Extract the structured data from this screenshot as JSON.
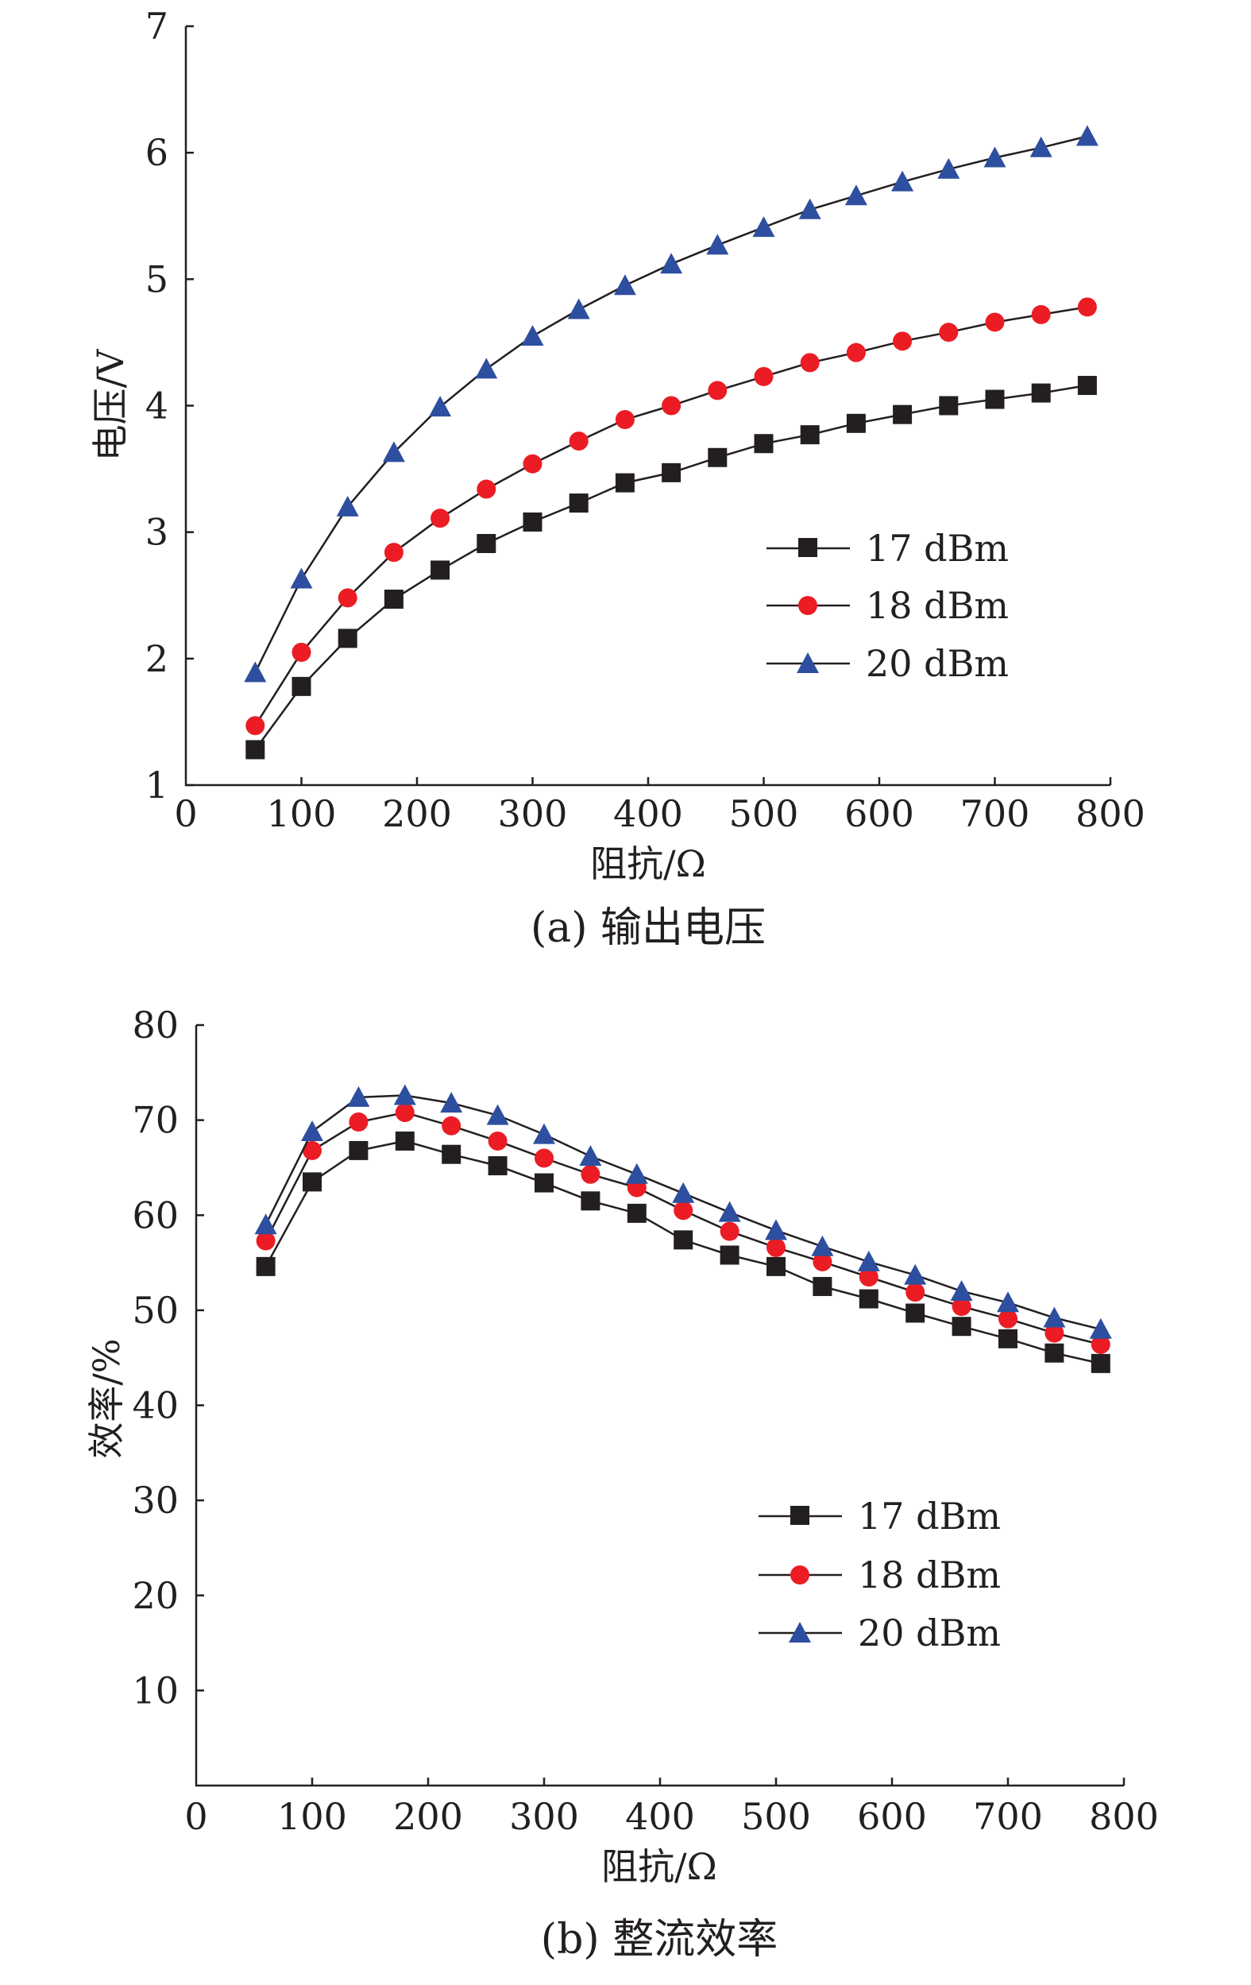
{
  "colors": {
    "axis": "#231f20",
    "s17": "#231f20",
    "s18": "#ec1c24",
    "s20": "#2e4f9f"
  },
  "chart_data": [
    {
      "type": "line",
      "caption": "(a) 输出电压",
      "xlabel": "阻抗/Ω",
      "ylabel": "电压/V",
      "xlim": [
        0,
        800
      ],
      "ylim": [
        1,
        7
      ],
      "xticks": [
        0,
        100,
        200,
        300,
        400,
        500,
        600,
        700,
        800
      ],
      "yticks": [
        1,
        2,
        3,
        4,
        5,
        6,
        7
      ],
      "legend_position": "lower-right",
      "x": [
        60,
        100,
        140,
        180,
        220,
        260,
        300,
        340,
        380,
        420,
        460,
        500,
        540,
        580,
        620,
        660,
        700,
        740,
        780
      ],
      "series": [
        {
          "name": "17 dBm",
          "marker": "square",
          "color": "#231f20",
          "values": [
            1.28,
            1.78,
            2.16,
            2.47,
            2.7,
            2.91,
            3.08,
            3.23,
            3.39,
            3.47,
            3.59,
            3.7,
            3.77,
            3.86,
            3.93,
            4.0,
            4.05,
            4.1,
            4.16
          ]
        },
        {
          "name": "18 dBm",
          "marker": "circle",
          "color": "#ec1c24",
          "values": [
            1.47,
            2.05,
            2.48,
            2.84,
            3.11,
            3.34,
            3.54,
            3.72,
            3.89,
            4.0,
            4.12,
            4.23,
            4.34,
            4.42,
            4.51,
            4.58,
            4.66,
            4.72,
            4.78
          ]
        },
        {
          "name": "20 dBm",
          "marker": "triangle",
          "color": "#2e4f9f",
          "values": [
            1.89,
            2.63,
            3.2,
            3.63,
            3.99,
            4.29,
            4.55,
            4.76,
            4.95,
            5.12,
            5.27,
            5.41,
            5.55,
            5.66,
            5.77,
            5.87,
            5.96,
            6.04,
            6.13
          ]
        }
      ]
    },
    {
      "type": "line",
      "caption": "(b) 整流效率",
      "xlabel": "阻抗/Ω",
      "ylabel": "效率/%",
      "xlim": [
        0,
        800
      ],
      "ylim": [
        0,
        80
      ],
      "xticks": [
        0,
        100,
        200,
        300,
        400,
        500,
        600,
        700,
        800
      ],
      "yticks": [
        10,
        20,
        30,
        40,
        50,
        60,
        70,
        80
      ],
      "legend_position": "lower-right",
      "x": [
        60,
        100,
        140,
        180,
        220,
        260,
        300,
        340,
        380,
        420,
        460,
        500,
        540,
        580,
        620,
        660,
        700,
        740,
        780
      ],
      "series": [
        {
          "name": "17 dBm",
          "marker": "square",
          "color": "#231f20",
          "values": [
            54.6,
            63.5,
            66.8,
            67.8,
            66.4,
            65.2,
            63.4,
            61.5,
            60.2,
            57.4,
            55.8,
            54.6,
            52.5,
            51.2,
            49.7,
            48.3,
            47.0,
            45.5,
            44.4
          ]
        },
        {
          "name": "18 dBm",
          "marker": "circle",
          "color": "#ec1c24",
          "values": [
            57.3,
            66.8,
            69.8,
            70.8,
            69.4,
            67.8,
            66.0,
            64.3,
            62.9,
            60.5,
            58.3,
            56.6,
            55.1,
            53.5,
            51.9,
            50.4,
            49.1,
            47.6,
            46.4
          ]
        },
        {
          "name": "20 dBm",
          "marker": "triangle",
          "color": "#2e4f9f",
          "values": [
            59.0,
            68.8,
            72.4,
            72.6,
            71.8,
            70.5,
            68.5,
            66.2,
            64.3,
            62.3,
            60.3,
            58.4,
            56.7,
            55.1,
            53.7,
            52.0,
            50.8,
            49.2,
            48.0
          ]
        }
      ]
    }
  ]
}
